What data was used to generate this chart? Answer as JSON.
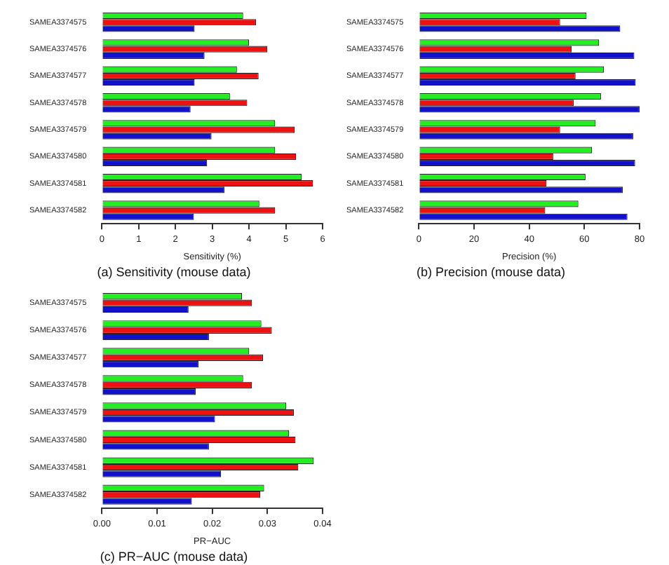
{
  "chart_data": [
    {
      "type": "bar",
      "orientation": "horizontal",
      "title": "(a) Sensitivity (mouse data)",
      "xlabel": "Sensitivity (%)",
      "categories": [
        "SAMEA3374575",
        "SAMEA3374576",
        "SAMEA3374577",
        "SAMEA3374578",
        "SAMEA3374579",
        "SAMEA3374580",
        "SAMEA3374581",
        "SAMEA3374582"
      ],
      "series": [
        {
          "color": "#22ee22",
          "values": [
            3.84,
            4.0,
            3.67,
            3.48,
            4.71,
            4.71,
            5.43,
            4.28
          ]
        },
        {
          "color": "#ee1111",
          "values": [
            4.19,
            4.5,
            4.26,
            3.95,
            5.24,
            5.28,
            5.74,
            4.71
          ]
        },
        {
          "color": "#1111cc",
          "values": [
            2.52,
            2.79,
            2.52,
            2.41,
            2.98,
            2.86,
            3.33,
            2.5
          ]
        }
      ],
      "xlim": [
        0,
        6
      ],
      "xticks": [
        0,
        1,
        2,
        3,
        4,
        5,
        6
      ],
      "grid": false,
      "legend": false
    },
    {
      "type": "bar",
      "orientation": "horizontal",
      "title": "(b) Precision (mouse data)",
      "xlabel": "Precision (%)",
      "categories": [
        "SAMEA3374575",
        "SAMEA3374576",
        "SAMEA3374577",
        "SAMEA3374578",
        "SAMEA3374579",
        "SAMEA3374580",
        "SAMEA3374581",
        "SAMEA3374582"
      ],
      "series": [
        {
          "color": "#22ee22",
          "values": [
            60.8,
            65.3,
            67.1,
            66,
            64.1,
            62.7,
            60.4,
            57.8
          ]
        },
        {
          "color": "#ee1111",
          "values": [
            51.2,
            55.4,
            56.8,
            56.1,
            51.2,
            48.7,
            46.3,
            45.8
          ]
        },
        {
          "color": "#1111cc",
          "values": [
            73,
            78.1,
            78.6,
            80,
            77.7,
            78.4,
            73.9,
            75.6
          ]
        }
      ],
      "xlim": [
        0,
        80
      ],
      "xticks": [
        0,
        20,
        40,
        60,
        80
      ],
      "grid": false,
      "legend": false
    },
    {
      "type": "bar",
      "orientation": "horizontal",
      "title": "(c) PR−AUC (mouse data)",
      "xlabel": "PR−AUC",
      "categories": [
        "SAMEA3374575",
        "SAMEA3374576",
        "SAMEA3374577",
        "SAMEA3374578",
        "SAMEA3374579",
        "SAMEA3374580",
        "SAMEA3374581",
        "SAMEA3374582"
      ],
      "series": [
        {
          "color": "#22ee22",
          "values": [
            0.0254,
            0.0289,
            0.0267,
            0.0256,
            0.0334,
            0.0339,
            0.0384,
            0.0294
          ]
        },
        {
          "color": "#ee1111",
          "values": [
            0.0272,
            0.0308,
            0.0292,
            0.0272,
            0.0348,
            0.0351,
            0.0356,
            0.0287
          ]
        },
        {
          "color": "#1111cc",
          "values": [
            0.0157,
            0.0194,
            0.0175,
            0.017,
            0.0205,
            0.0194,
            0.0216,
            0.0163
          ]
        }
      ],
      "xlim": [
        0,
        0.04
      ],
      "xticks": [
        {
          "value": 0,
          "label": "0.00"
        },
        {
          "value": 0.01,
          "label": "0.01"
        },
        {
          "value": 0.02,
          "label": "0.02"
        },
        {
          "value": 0.03,
          "label": "0.03"
        },
        {
          "value": 0.04,
          "label": "0.04"
        }
      ],
      "grid": false,
      "legend": false
    }
  ]
}
